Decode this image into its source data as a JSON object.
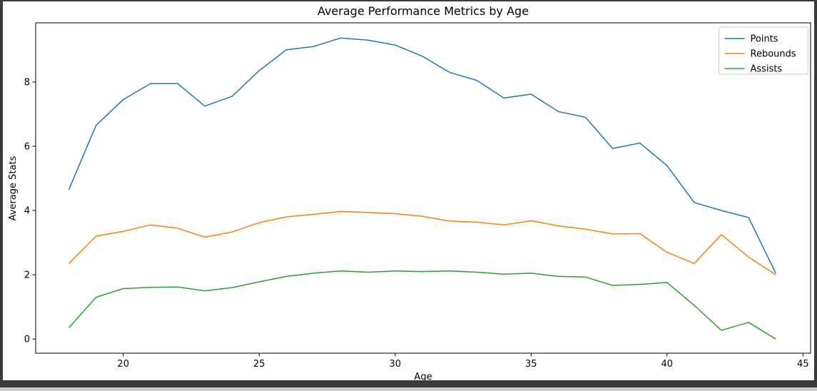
{
  "window": {
    "frame_color": "#3a3a3a",
    "background": "#ffffff"
  },
  "chart_data": {
    "type": "line",
    "title": "Average Performance Metrics by Age",
    "xlabel": "Age",
    "ylabel": "Average Stats",
    "x": [
      18,
      19,
      20,
      21,
      22,
      23,
      24,
      25,
      26,
      27,
      28,
      29,
      30,
      31,
      32,
      33,
      34,
      35,
      36,
      37,
      38,
      39,
      40,
      41,
      42,
      43,
      44
    ],
    "series": [
      {
        "name": "Points",
        "color": "#1f77b4",
        "values": [
          4.65,
          6.65,
          7.45,
          7.95,
          7.95,
          7.25,
          7.55,
          8.35,
          9.0,
          9.1,
          9.37,
          9.3,
          9.15,
          8.8,
          8.3,
          8.05,
          7.5,
          7.62,
          7.08,
          6.9,
          5.93,
          6.1,
          5.4,
          4.25,
          4.0,
          3.78,
          2.05
        ]
      },
      {
        "name": "Rebounds",
        "color": "#ff7f0e",
        "values": [
          2.35,
          3.2,
          3.35,
          3.55,
          3.45,
          3.17,
          3.33,
          3.62,
          3.8,
          3.88,
          3.97,
          3.94,
          3.9,
          3.82,
          3.67,
          3.64,
          3.55,
          3.68,
          3.52,
          3.42,
          3.27,
          3.28,
          2.7,
          2.35,
          3.25,
          2.55,
          2.0
        ]
      },
      {
        "name": "Assists",
        "color": "#2ca02c",
        "values": [
          0.35,
          1.3,
          1.57,
          1.61,
          1.62,
          1.5,
          1.6,
          1.78,
          1.95,
          2.05,
          2.12,
          2.08,
          2.12,
          2.1,
          2.12,
          2.08,
          2.02,
          2.05,
          1.95,
          1.93,
          1.67,
          1.7,
          1.76,
          1.05,
          0.27,
          0.52,
          0.0
        ]
      }
    ],
    "xticks": [
      20,
      25,
      30,
      35,
      40,
      45
    ],
    "yticks": [
      0,
      2,
      4,
      6,
      8
    ],
    "xlim": [
      16.78,
      45.28
    ],
    "ylim": [
      -0.44,
      9.84
    ],
    "grid": false,
    "legend": {
      "position": "upper right",
      "entries": [
        "Points",
        "Rebounds",
        "Assists"
      ]
    },
    "line_width": 1.5,
    "axis_color": "#000000",
    "legend_border_color": "#cccccc"
  }
}
